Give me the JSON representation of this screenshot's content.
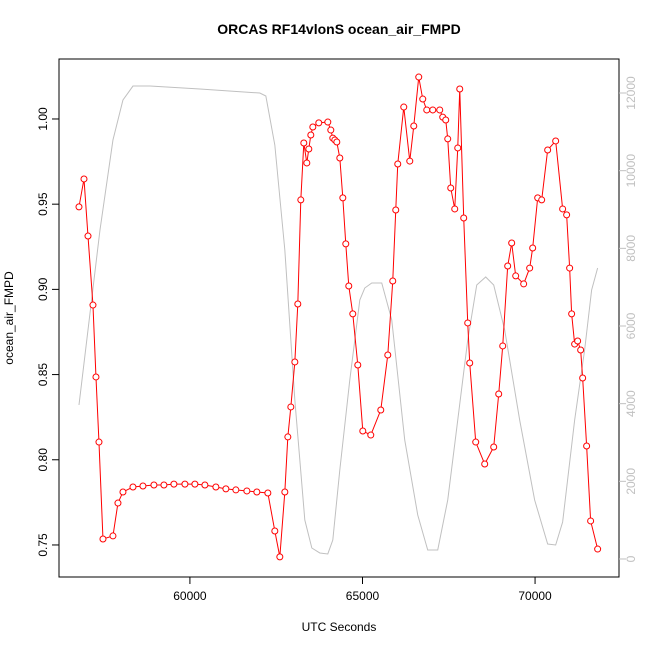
{
  "chart_data": {
    "type": "line",
    "title": "ORCAS RF14vlonS ocean_air_FMPD",
    "x_label": "UTC Seconds",
    "y_label": "ocean_air_FMPD",
    "xlim": [
      56207,
      72432
    ],
    "ylim": [
      0.7312,
      1.0352
    ],
    "y2lim": [
      -464,
      12876
    ],
    "xticks": [
      60000,
      65000,
      70000
    ],
    "yticks": [
      0.75,
      {
        "value": 0.8,
        "label": "0.80"
      },
      0.85,
      {
        "value": 0.9,
        "label": "0.90"
      },
      0.95,
      {
        "value": 1.0,
        "label": "1.00"
      }
    ],
    "y2ticks": [
      0,
      2000,
      4000,
      6000,
      8000,
      10000,
      12000
    ],
    "series": [
      {
        "color": "#ff0000",
        "markers": true,
        "x": [
          56786,
          56931,
          57047,
          57191,
          57278,
          57365,
          57481,
          57770,
          57915,
          58060,
          58350,
          58639,
          58957,
          59247,
          59536,
          59855,
          60144,
          60434,
          60752,
          61042,
          61331,
          61650,
          61939,
          62258,
          62460,
          62605,
          62750,
          62837,
          62924,
          63040,
          63126,
          63213,
          63300,
          63387,
          63445,
          63503,
          63561,
          63734,
          63995,
          64082,
          64140,
          64198,
          64256,
          64343,
          64430,
          64516,
          64603,
          64719,
          64864,
          65009,
          65240,
          65530,
          65733,
          65877,
          65964,
          66022,
          66196,
          66370,
          66486,
          66630,
          66746,
          66862,
          67036,
          67238,
          67325,
          67412,
          67470,
          67557,
          67673,
          67760,
          67818,
          67933,
          68049,
          68107,
          68281,
          68541,
          68802,
          68947,
          69063,
          69207,
          69323,
          69439,
          69670,
          69844,
          69931,
          70076,
          70192,
          70365,
          70597,
          70799,
          70915,
          71002,
          71060,
          71147,
          71234,
          71321,
          71379,
          71494,
          71610,
          71813
        ],
        "values": [
          0.9484,
          0.9648,
          0.9313,
          0.8908,
          0.8486,
          0.8104,
          0.7535,
          0.7553,
          0.7746,
          0.7811,
          0.784,
          0.7846,
          0.7852,
          0.7852,
          0.7857,
          0.7857,
          0.7857,
          0.7852,
          0.784,
          0.7829,
          0.7823,
          0.7817,
          0.7811,
          0.7805,
          0.7582,
          0.743,
          0.7811,
          0.8134,
          0.831,
          0.8574,
          0.8914,
          0.9525,
          0.9859,
          0.9742,
          0.9824,
          0.9906,
          0.9953,
          0.9977,
          0.9982,
          0.9935,
          0.9888,
          0.9877,
          0.9865,
          0.9771,
          0.9537,
          0.9267,
          0.902,
          0.8856,
          0.8556,
          0.8169,
          0.8145,
          0.8292,
          0.8615,
          0.9049,
          0.9466,
          0.9736,
          1.007,
          0.9753,
          0.9959,
          1.0246,
          1.0117,
          1.0053,
          1.0053,
          1.0053,
          1.0011,
          0.9994,
          0.9883,
          0.9595,
          0.9472,
          0.983,
          1.0176,
          0.9419,
          0.8803,
          0.8568,
          0.8104,
          0.7975,
          0.8075,
          0.8386,
          0.8668,
          0.9137,
          0.9272,
          0.9079,
          0.9032,
          0.9125,
          0.9243,
          0.9537,
          0.9525,
          0.9818,
          0.9871,
          0.9472,
          0.9437,
          0.9125,
          0.8856,
          0.8679,
          0.8697,
          0.8644,
          0.848,
          0.8081,
          0.7641,
          0.7476
        ]
      },
      {
        "color": "#c0c0c0",
        "axis": "y2",
        "x": [
          56786,
          57047,
          57394,
          57770,
          58060,
          58350,
          58842,
          60289,
          62026,
          62200,
          62460,
          62750,
          63040,
          63329,
          63532,
          63763,
          63995,
          64140,
          64343,
          64632,
          64922,
          65066,
          65269,
          65558,
          65848,
          66224,
          66601,
          66890,
          67180,
          67470,
          67760,
          68049,
          68310,
          68570,
          68802,
          69120,
          69554,
          69988,
          70365,
          70597,
          70799,
          71147,
          71436,
          71639,
          71813
        ],
        "values": [
          3966,
          5897,
          8472,
          10790,
          11820,
          12180,
          12180,
          12103,
          12000,
          11923,
          10661,
          7957,
          4094,
          1004,
          283,
          155,
          129,
          489,
          2292,
          4609,
          6669,
          6978,
          7107,
          7107,
          6154,
          3064,
          1133,
          232,
          232,
          1519,
          3579,
          5639,
          7056,
          7262,
          7056,
          5897,
          3579,
          1519,
          386,
          361,
          953,
          3579,
          5382,
          6927,
          7493
        ]
      }
    ]
  }
}
